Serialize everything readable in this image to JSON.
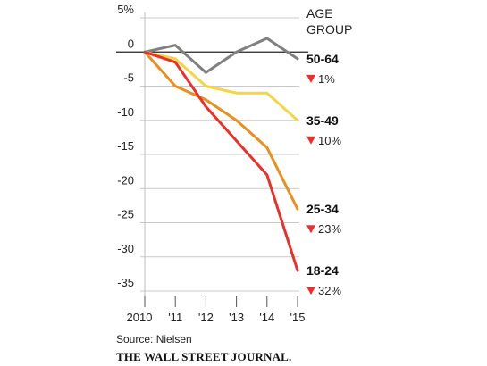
{
  "chart_data": {
    "type": "line",
    "title": "",
    "xlabel": "",
    "ylabel": "",
    "x": [
      "2010",
      "'11",
      "'12",
      "'13",
      "'14",
      "'15"
    ],
    "ylim": [
      -35,
      5
    ],
    "yticks": [
      5,
      0,
      -5,
      -10,
      -15,
      -20,
      -25,
      -30,
      -35
    ],
    "ytick_labels": [
      "5%",
      "0",
      "-5",
      "-10",
      "-15",
      "-20",
      "-25",
      "-30",
      "-35"
    ],
    "grid": "horizontal",
    "legend": {
      "title_lines": [
        "AGE",
        "GROUP"
      ],
      "placement": "right"
    },
    "series": [
      {
        "name": "50-64",
        "change_label": "1%",
        "direction": "down",
        "color": "#808080",
        "values": [
          0,
          1,
          -3,
          0,
          2,
          -1
        ]
      },
      {
        "name": "35-49",
        "change_label": "10%",
        "direction": "down",
        "color": "#f5d547",
        "values": [
          0,
          -1,
          -5,
          -6,
          -6,
          -10
        ]
      },
      {
        "name": "25-34",
        "change_label": "23%",
        "direction": "down",
        "color": "#e8901f",
        "values": [
          0,
          -5,
          -7,
          -10,
          -14,
          -23
        ]
      },
      {
        "name": "18-24",
        "change_label": "32%",
        "direction": "down",
        "color": "#e8312b",
        "values": [
          0,
          -1.5,
          -8,
          -13,
          -18,
          -32
        ]
      }
    ],
    "marker_color": "#e8312b",
    "source": "Source: Nielsen",
    "publication": "THE WALL STREET JOURNAL."
  }
}
